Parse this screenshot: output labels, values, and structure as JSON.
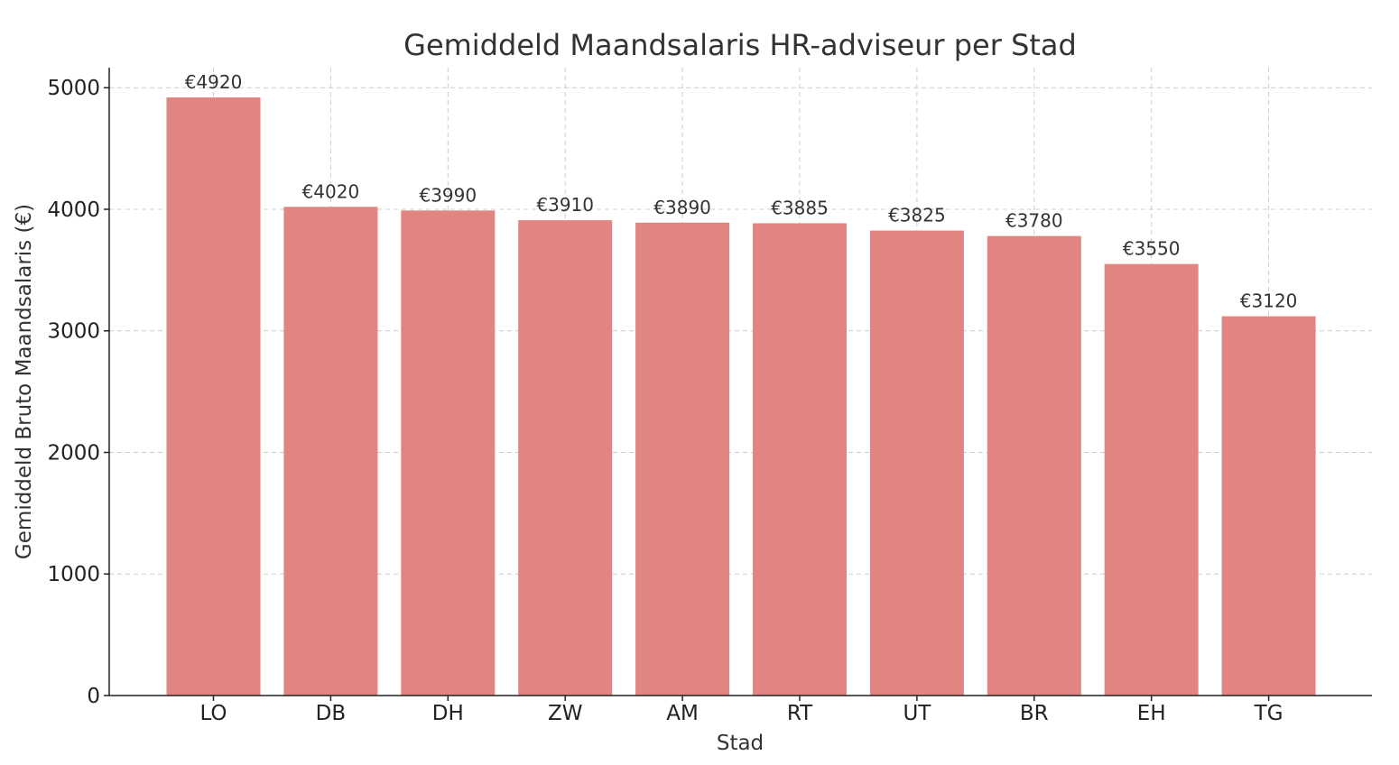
{
  "chart_data": {
    "type": "bar",
    "title": "Gemiddeld Maandsalaris HR-adviseur per Stad",
    "xlabel": "Stad",
    "ylabel": "Gemiddeld Bruto Maandsalaris (€)",
    "categories": [
      "LO",
      "DB",
      "DH",
      "ZW",
      "AM",
      "RT",
      "UT",
      "BR",
      "EH",
      "TG"
    ],
    "values": [
      4920,
      4020,
      3990,
      3910,
      3890,
      3885,
      3825,
      3780,
      3550,
      3120
    ],
    "data_labels": [
      "€4920",
      "€4020",
      "€3990",
      "€3910",
      "€3890",
      "€3885",
      "€3825",
      "€3780",
      "€3550",
      "€3120"
    ],
    "ylim": [
      0,
      5165
    ],
    "yticks": [
      0,
      1000,
      2000,
      3000,
      4000,
      5000
    ],
    "grid": true,
    "bar_color": "#e0857f"
  }
}
